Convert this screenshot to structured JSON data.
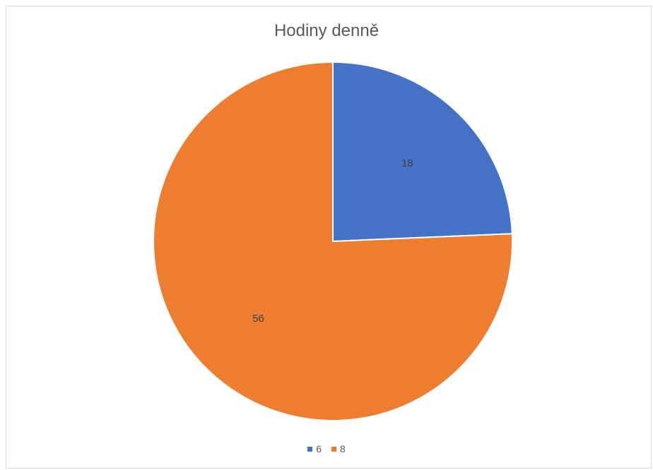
{
  "chart_data": {
    "type": "pie",
    "title": "Hodiny denně",
    "categories": [
      "6",
      "8"
    ],
    "values": [
      18,
      56
    ],
    "colors": [
      "#4472c4",
      "#ed7d31"
    ],
    "data_labels": [
      "18",
      "56"
    ],
    "legend_position": "bottom",
    "start_angle_deg": 0,
    "direction": "clockwise"
  }
}
